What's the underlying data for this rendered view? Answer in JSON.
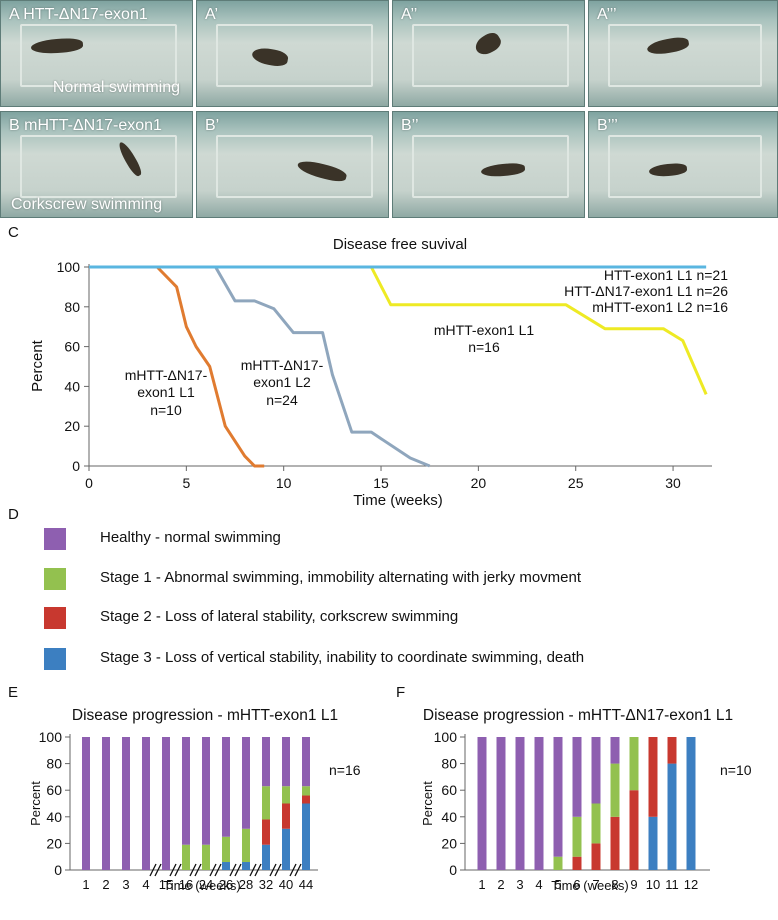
{
  "panels_top": [
    {
      "letter": "A",
      "caption": "HTT-ΔN17-exon1",
      "sub": "Normal swimming"
    },
    {
      "letter": "A’",
      "caption": "",
      "sub": ""
    },
    {
      "letter": "A’’",
      "caption": "",
      "sub": ""
    },
    {
      "letter": "A’’’",
      "caption": "",
      "sub": ""
    },
    {
      "letter": "B",
      "caption": "mHTT-ΔN17-exon1",
      "sub": "Corkscrew swimming"
    },
    {
      "letter": "B’",
      "caption": "",
      "sub": ""
    },
    {
      "letter": "B’’",
      "caption": "",
      "sub": ""
    },
    {
      "letter": "B’’’",
      "caption": "",
      "sub": ""
    }
  ],
  "labels": {
    "C": "C",
    "D": "D",
    "E": "E",
    "F": "F"
  },
  "legend_D": [
    {
      "text": "Healthy - normal swimming",
      "color": "#8e5fb0"
    },
    {
      "text": "Stage 1 - Abnormal swimming, immobility alternating with jerky movment",
      "color": "#93c14f"
    },
    {
      "text": "Stage 2 - Loss of lateral stability, corkscrew swimming",
      "color": "#c8382f"
    },
    {
      "text": "Stage 3 - Loss of vertical stability, inability to coordinate swimming, death",
      "color": "#3c7fc1"
    }
  ],
  "chart_data": [
    {
      "type": "line",
      "title": "Disease free suvival",
      "xlabel": "Time (weeks)",
      "ylabel": "Percent",
      "xlim": [
        0,
        32
      ],
      "ylim": [
        0,
        100
      ],
      "xticks": [
        0,
        5,
        10,
        15,
        20,
        25,
        30
      ],
      "yticks": [
        0,
        20,
        40,
        60,
        80,
        100
      ],
      "series": [
        {
          "name": "mHTT-ΔN17-exon1 L1 n=10",
          "color": "#e07b30",
          "points": [
            [
              0,
              100
            ],
            [
              3.5,
              100
            ],
            [
              4.5,
              90
            ],
            [
              5,
              70
            ],
            [
              5.5,
              60
            ],
            [
              6.2,
              50
            ],
            [
              7,
              20
            ],
            [
              8,
              5
            ],
            [
              8.5,
              0
            ],
            [
              9,
              0
            ]
          ]
        },
        {
          "name": "mHTT-ΔN17-exon1 L2 n=24",
          "color": "#8fa6bd",
          "points": [
            [
              0,
              100
            ],
            [
              6.5,
              100
            ],
            [
              7.5,
              83
            ],
            [
              8.5,
              83
            ],
            [
              9.5,
              79
            ],
            [
              10.5,
              67
            ],
            [
              12,
              67
            ],
            [
              12.5,
              46
            ],
            [
              13.5,
              17
            ],
            [
              14.5,
              17
            ],
            [
              16.5,
              4
            ],
            [
              17.5,
              0
            ]
          ]
        },
        {
          "name": "mHTT-exon1 L1 n=16",
          "color": "#eeea24",
          "points": [
            [
              14.5,
              100
            ],
            [
              15.5,
              81
            ],
            [
              24.5,
              81
            ],
            [
              26.5,
              69
            ],
            [
              29.5,
              69
            ],
            [
              30.5,
              63
            ],
            [
              31.7,
              36
            ]
          ]
        },
        {
          "name": "HTT-exon1 L1 n=21, HTT-ΔN17-exon1 L1 n=26, mHTT-exon1 L2 n=16",
          "color": "#5ab6e0",
          "points": [
            [
              0,
              100
            ],
            [
              31.7,
              100
            ]
          ]
        }
      ],
      "annotations": [
        {
          "lines": [
            "HTT-exon1 L1 n=21",
            "HTT-ΔN17-exon1 L1 n=26",
            "mHTT-exon1 L2 n=16"
          ],
          "anchor": "top-right"
        },
        {
          "lines": [
            "mHTT-exon1 L1",
            "n=16"
          ]
        },
        {
          "lines": [
            "mHTT-ΔN17-",
            "exon1 L2",
            "n=24"
          ]
        },
        {
          "lines": [
            "mHTT-ΔN17-",
            "exon1 L1",
            "n=10"
          ]
        }
      ]
    },
    {
      "type": "bar",
      "stacked": true,
      "title": "Disease progression - mHTT-exon1 L1",
      "xlabel": "Time (weeks)",
      "ylabel": "Percent",
      "ylim": [
        0,
        100
      ],
      "yticks": [
        0,
        20,
        40,
        60,
        80,
        100
      ],
      "categories": [
        "1",
        "2",
        "3",
        "4",
        "15",
        "16",
        "24",
        "26",
        "28",
        "32",
        "40",
        "44"
      ],
      "axis_breaks_after": [
        "4",
        "15",
        "16",
        "24",
        "26",
        "28",
        "32",
        "40"
      ],
      "annotation": "n=16",
      "series": [
        {
          "name": "Stage 3",
          "color": "#3c7fc1",
          "values": [
            0,
            0,
            0,
            0,
            0,
            0,
            0,
            6,
            6,
            19,
            31,
            50
          ]
        },
        {
          "name": "Stage 2",
          "color": "#c8382f",
          "values": [
            0,
            0,
            0,
            0,
            0,
            0,
            0,
            0,
            0,
            19,
            19,
            6
          ]
        },
        {
          "name": "Stage 1",
          "color": "#93c14f",
          "values": [
            0,
            0,
            0,
            0,
            0,
            19,
            19,
            19,
            25,
            25,
            13,
            7
          ]
        },
        {
          "name": "Healthy",
          "color": "#8e5fb0",
          "values": [
            100,
            100,
            100,
            100,
            100,
            81,
            81,
            75,
            69,
            37,
            37,
            37
          ]
        }
      ]
    },
    {
      "type": "bar",
      "stacked": true,
      "title": "Disease progression - mHTT-ΔN17-exon1 L1",
      "xlabel": "Time (weeks)",
      "ylabel": "Percent",
      "ylim": [
        0,
        100
      ],
      "yticks": [
        0,
        20,
        40,
        60,
        80,
        100
      ],
      "categories": [
        "1",
        "2",
        "3",
        "4",
        "5",
        "6",
        "7",
        "8",
        "9",
        "10",
        "11",
        "12"
      ],
      "annotation": "n=10",
      "series": [
        {
          "name": "Stage 3",
          "color": "#3c7fc1",
          "values": [
            0,
            0,
            0,
            0,
            0,
            0,
            0,
            0,
            0,
            40,
            80,
            100
          ]
        },
        {
          "name": "Stage 2",
          "color": "#c8382f",
          "values": [
            0,
            0,
            0,
            0,
            0,
            10,
            20,
            40,
            60,
            60,
            20,
            0
          ]
        },
        {
          "name": "Stage 1",
          "color": "#93c14f",
          "values": [
            0,
            0,
            0,
            0,
            10,
            30,
            30,
            40,
            40,
            0,
            0,
            0
          ]
        },
        {
          "name": "Healthy",
          "color": "#8e5fb0",
          "values": [
            100,
            100,
            100,
            100,
            90,
            60,
            50,
            20,
            0,
            0,
            0,
            0
          ]
        }
      ]
    }
  ]
}
